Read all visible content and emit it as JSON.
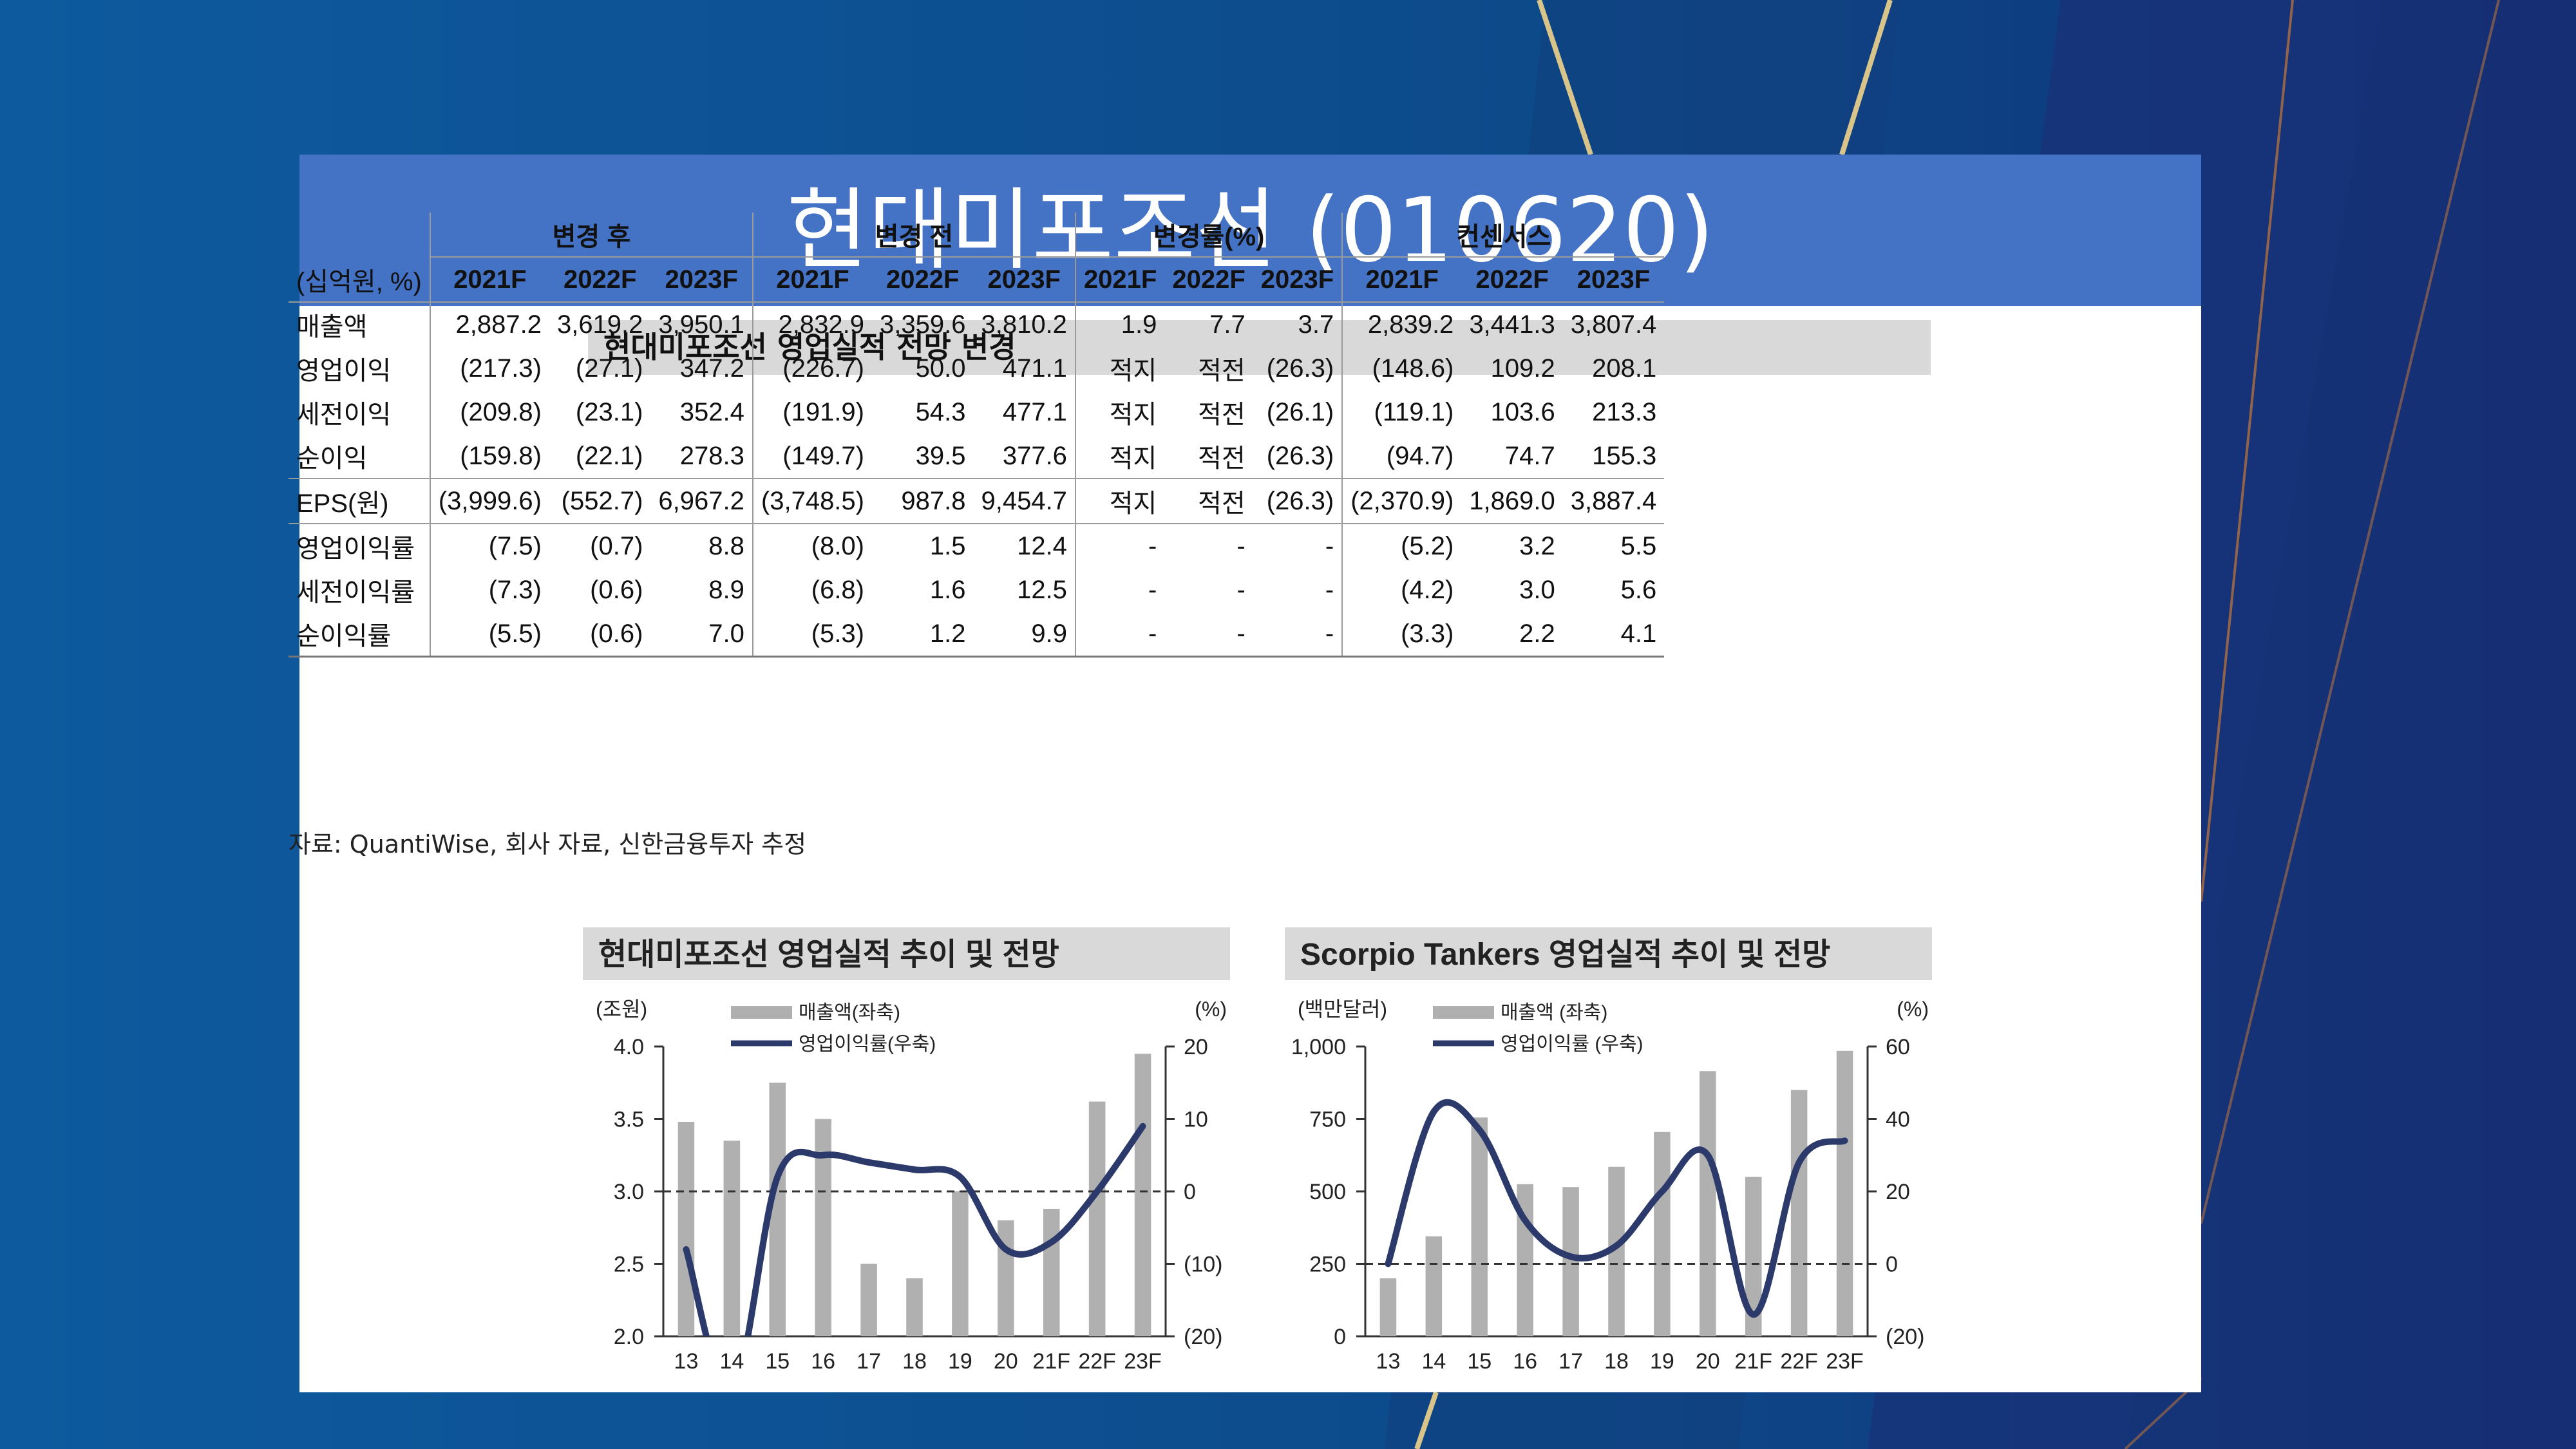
{
  "title": "현대미포조선 (010620)",
  "table": {
    "title": "현대미포조선 영업실적 전망 변경",
    "unit": "(십억원, %)",
    "groups": [
      "변경 후",
      "변경 전",
      "변경률(%)",
      "컨센서스"
    ],
    "years": [
      "2021F",
      "2022F",
      "2023F"
    ],
    "rows": [
      {
        "label": "매출액",
        "values": [
          "2,887.2",
          "3,619.2",
          "3,950.1",
          "2,832.9",
          "3,359.6",
          "3,810.2",
          "1.9",
          "7.7",
          "3.7",
          "2,839.2",
          "3,441.3",
          "3,807.4"
        ]
      },
      {
        "label": "영업이익",
        "values": [
          "(217.3)",
          "(27.1)",
          "347.2",
          "(226.7)",
          "50.0",
          "471.1",
          "적지",
          "적전",
          "(26.3)",
          "(148.6)",
          "109.2",
          "208.1"
        ]
      },
      {
        "label": "세전이익",
        "values": [
          "(209.8)",
          "(23.1)",
          "352.4",
          "(191.9)",
          "54.3",
          "477.1",
          "적지",
          "적전",
          "(26.1)",
          "(119.1)",
          "103.6",
          "213.3"
        ]
      },
      {
        "label": "순이익",
        "values": [
          "(159.8)",
          "(22.1)",
          "278.3",
          "(149.7)",
          "39.5",
          "377.6",
          "적지",
          "적전",
          "(26.3)",
          "(94.7)",
          "74.7",
          "155.3"
        ]
      },
      {
        "label": "EPS(원)",
        "values": [
          "(3,999.6)",
          "(552.7)",
          "6,967.2",
          "(3,748.5)",
          "987.8",
          "9,454.7",
          "적지",
          "적전",
          "(26.3)",
          "(2,370.9)",
          "1,869.0",
          "3,887.4"
        ]
      },
      {
        "label": "영업이익률",
        "values": [
          "(7.5)",
          "(0.7)",
          "8.8",
          "(8.0)",
          "1.5",
          "12.4",
          "-",
          "-",
          "-",
          "(5.2)",
          "3.2",
          "5.5"
        ]
      },
      {
        "label": "세전이익률",
        "values": [
          "(7.3)",
          "(0.6)",
          "8.9",
          "(6.8)",
          "1.6",
          "12.5",
          "-",
          "-",
          "-",
          "(4.2)",
          "3.0",
          "5.6"
        ]
      },
      {
        "label": "순이익률",
        "values": [
          "(5.5)",
          "(0.6)",
          "7.0",
          "(5.3)",
          "1.2",
          "9.9",
          "-",
          "-",
          "-",
          "(3.3)",
          "2.2",
          "4.1"
        ]
      }
    ],
    "source": "자료: QuantiWise, 회사 자료, 신한금융투자 추정"
  },
  "chart_data": [
    {
      "type": "bar",
      "title": "현대미포조선 영업실적 추이 및 전망",
      "left_unit": "(조원)",
      "right_unit": "(%)",
      "categories": [
        "13",
        "14",
        "15",
        "16",
        "17",
        "18",
        "19",
        "20",
        "21F",
        "22F",
        "23F"
      ],
      "left_ticks": [
        "4.0",
        "3.5",
        "3.0",
        "2.5",
        "2.0"
      ],
      "right_ticks": [
        "20",
        "10",
        "0",
        "(10)",
        "(20)"
      ],
      "ylim_left": [
        2.0,
        4.0
      ],
      "ylim_right": [
        -20,
        20
      ],
      "series": [
        {
          "name": "매출액(좌축)",
          "axis": "left",
          "kind": "bar",
          "color": "#b0b0b0",
          "values": [
            3.48,
            3.35,
            3.75,
            3.5,
            2.5,
            2.4,
            3.0,
            2.8,
            2.88,
            3.62,
            3.95
          ]
        },
        {
          "name": "영업이익률(우축)",
          "axis": "right",
          "kind": "line",
          "color": "#2b3a6b",
          "values": [
            -8,
            -28,
            2,
            5,
            4,
            3,
            2,
            -8,
            -7,
            0,
            9
          ]
        }
      ],
      "reference_line": 0
    },
    {
      "type": "bar",
      "title": "Scorpio Tankers 영업실적 추이 및 전망",
      "left_unit": "(백만달러)",
      "right_unit": "(%)",
      "categories": [
        "13",
        "14",
        "15",
        "16",
        "17",
        "18",
        "19",
        "20",
        "21F",
        "22F",
        "23F"
      ],
      "left_ticks": [
        "1,000",
        "750",
        "500",
        "250",
        "0"
      ],
      "right_ticks": [
        "60",
        "40",
        "20",
        "0",
        "(20)"
      ],
      "ylim_left": [
        0,
        1000
      ],
      "ylim_right": [
        -20,
        60
      ],
      "series": [
        {
          "name": "매출액 (좌축)",
          "axis": "left",
          "kind": "bar",
          "color": "#b0b0b0",
          "values": [
            200,
            345,
            755,
            525,
            515,
            585,
            705,
            915,
            550,
            850,
            985
          ]
        },
        {
          "name": "영업이익률 (우축)",
          "axis": "right",
          "kind": "line",
          "color": "#2b3a6b",
          "values": [
            0,
            42,
            37,
            12,
            2,
            5,
            20,
            30,
            -14,
            28,
            34
          ]
        }
      ],
      "reference_line": 0
    }
  ]
}
